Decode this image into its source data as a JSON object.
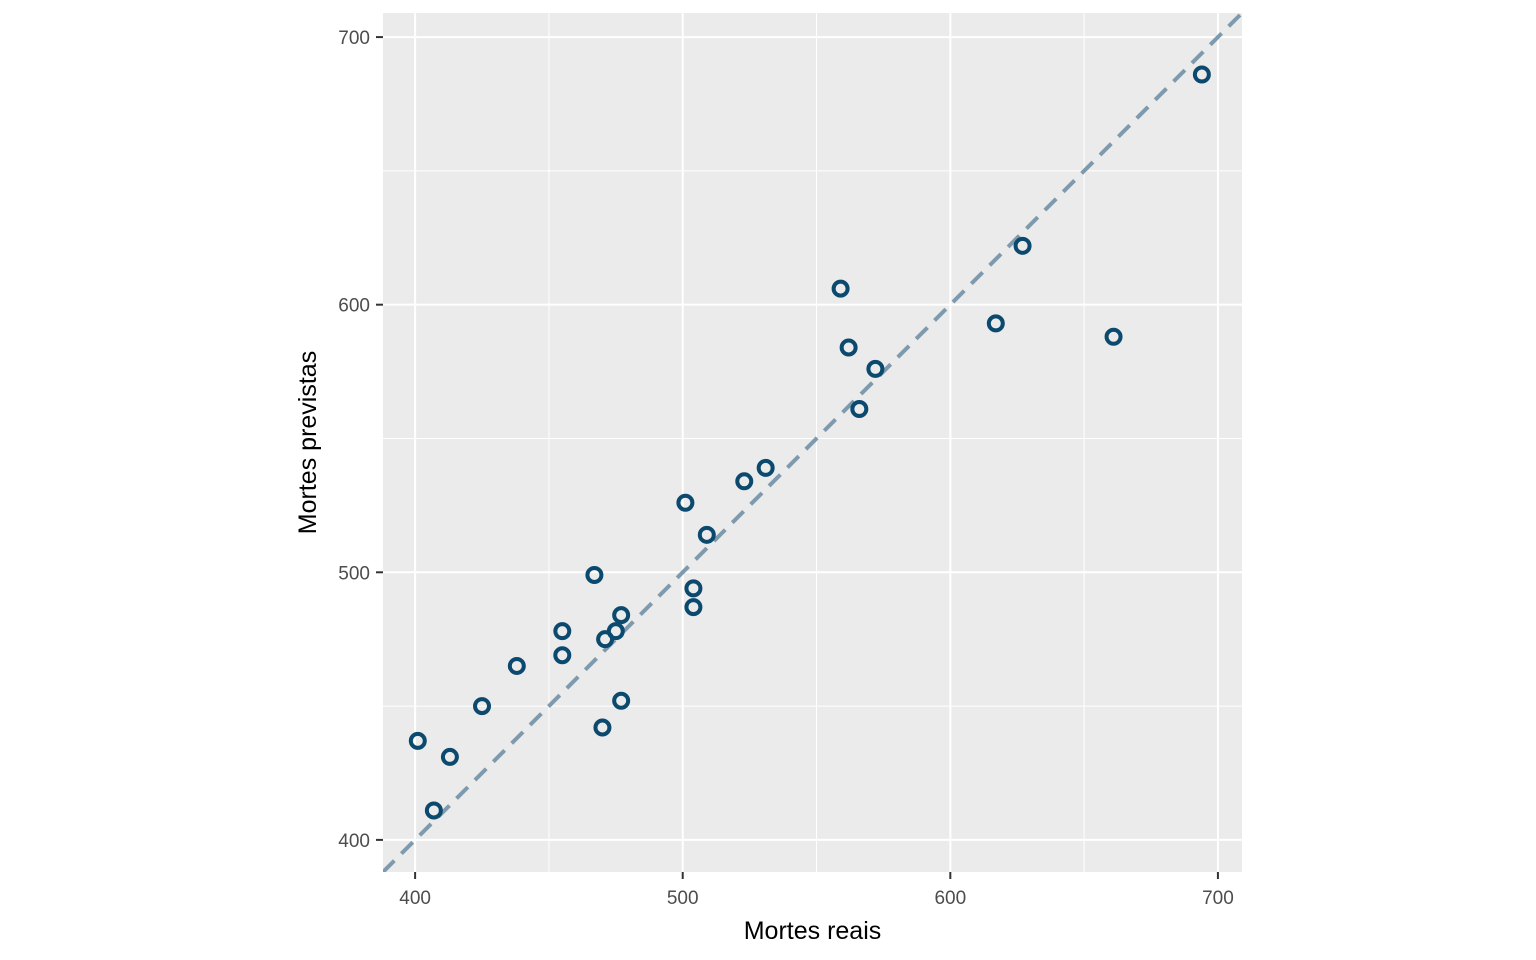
{
  "chart_data": {
    "type": "scatter",
    "xlabel": "Mortes reais",
    "ylabel": "Mortes previstas",
    "xlim": [
      388,
      709
    ],
    "ylim": [
      388,
      709
    ],
    "x_ticks": [
      400,
      500,
      600,
      700
    ],
    "y_ticks": [
      400,
      500,
      600,
      700
    ],
    "x_tick_labels": [
      "400",
      "500",
      "600",
      "700"
    ],
    "y_tick_labels": [
      "400",
      "500",
      "600",
      "700"
    ],
    "grid": true,
    "reference_line": {
      "slope": 1,
      "intercept": 0,
      "style": "dashed"
    },
    "points": [
      {
        "x": 401,
        "y": 437
      },
      {
        "x": 407,
        "y": 411
      },
      {
        "x": 413,
        "y": 431
      },
      {
        "x": 425,
        "y": 450
      },
      {
        "x": 438,
        "y": 465
      },
      {
        "x": 455,
        "y": 478
      },
      {
        "x": 455,
        "y": 469
      },
      {
        "x": 467,
        "y": 499
      },
      {
        "x": 470,
        "y": 442
      },
      {
        "x": 471,
        "y": 475
      },
      {
        "x": 475,
        "y": 478
      },
      {
        "x": 477,
        "y": 484
      },
      {
        "x": 477,
        "y": 452
      },
      {
        "x": 501,
        "y": 526
      },
      {
        "x": 504,
        "y": 494
      },
      {
        "x": 504,
        "y": 487
      },
      {
        "x": 509,
        "y": 514
      },
      {
        "x": 523,
        "y": 534
      },
      {
        "x": 531,
        "y": 539
      },
      {
        "x": 559,
        "y": 606
      },
      {
        "x": 562,
        "y": 584
      },
      {
        "x": 566,
        "y": 561
      },
      {
        "x": 572,
        "y": 576
      },
      {
        "x": 617,
        "y": 593
      },
      {
        "x": 627,
        "y": 622
      },
      {
        "x": 661,
        "y": 588
      },
      {
        "x": 694,
        "y": 686
      }
    ],
    "colors": {
      "panel_background": "#ebebeb",
      "grid": "#ffffff",
      "point_stroke": "#0b4a6e",
      "reference_line": "#7f9aad"
    }
  }
}
